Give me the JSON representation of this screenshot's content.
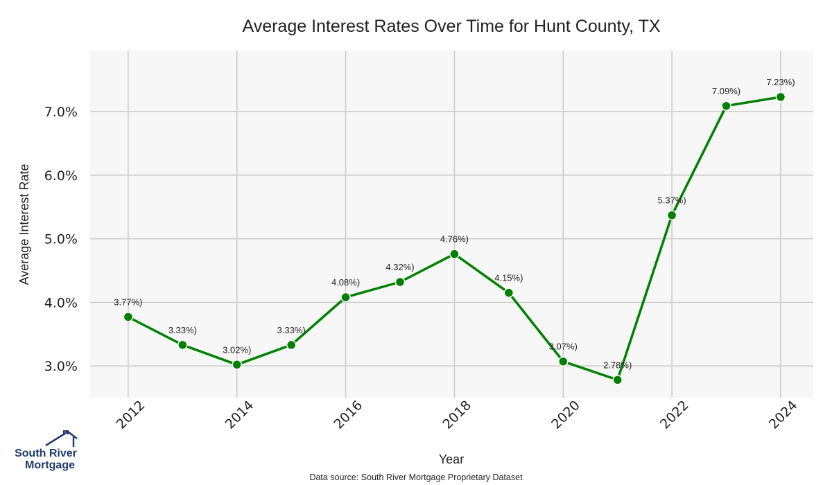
{
  "chart_data": {
    "type": "line",
    "title": "Average Interest Rates Over Time for Hunt County, TX",
    "xlabel": "Year",
    "ylabel": "Average Interest Rate",
    "x": [
      2012,
      2013,
      2014,
      2015,
      2016,
      2017,
      2018,
      2019,
      2020,
      2021,
      2022,
      2023,
      2024
    ],
    "values": [
      3.77,
      3.33,
      3.02,
      3.33,
      4.08,
      4.32,
      4.76,
      4.15,
      3.07,
      2.78,
      5.37,
      7.09,
      7.23
    ],
    "data_labels": [
      "3.77%)",
      "3.33%)",
      "3.02%)",
      "3.33%)",
      "4.08%)",
      "4.32%)",
      "4.76%)",
      "4.15%)",
      "3.07%)",
      "2.78%)",
      "5.37%)",
      "7.09%)",
      "7.23%)"
    ],
    "xticks": [
      "2012",
      "2014",
      "2016",
      "2018",
      "2020",
      "2022",
      "2024"
    ],
    "yticks": [
      3.0,
      4.0,
      5.0,
      6.0,
      7.0
    ],
    "ytick_labels": [
      "3.0%",
      "4.0%",
      "5.0%",
      "6.0%",
      "7.0%"
    ],
    "xlim": [
      2011.3,
      2024.6
    ],
    "ylim": [
      2.5,
      7.96
    ],
    "grid": true,
    "line_color": "#008000",
    "plot_background": "#f7f7f7",
    "grid_color": "#cccccc"
  },
  "source_note": "Data source: South River Mortgage Proprietary Dataset",
  "logo": {
    "line1": "South River",
    "line2": "Mortgage"
  }
}
